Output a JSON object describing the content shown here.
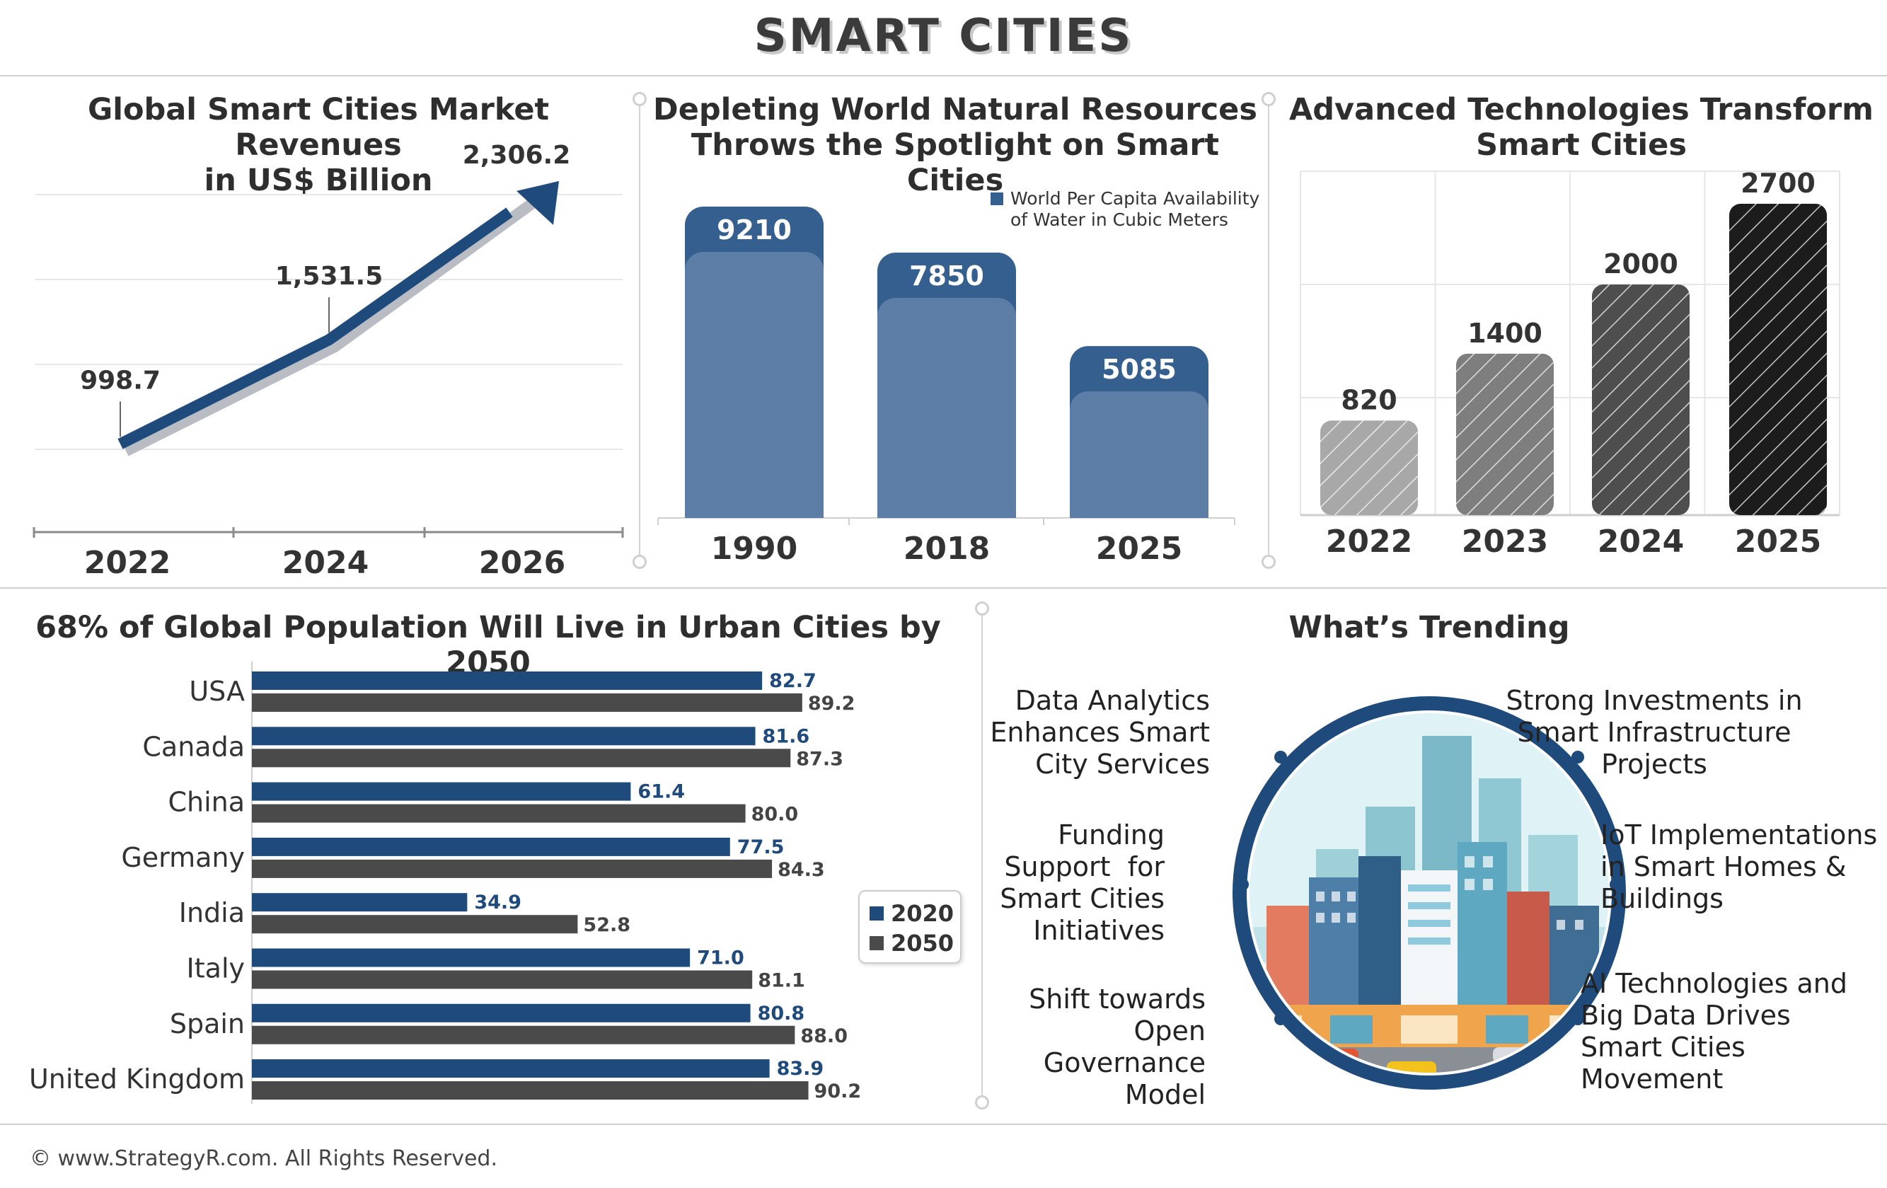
{
  "title": "SMART CITIES",
  "footer": "© www.StrategyR.com. All Rights Reserved.",
  "panels": {
    "market": {
      "title_line1": "Global Smart Cities Market Revenues",
      "title_line2": "in US$ Billion"
    },
    "water": {
      "title_line1": "Depleting World Natural Resources",
      "title_line2": "Throws the Spotlight on Smart Cities",
      "legend_line1": "World Per Capita Availability",
      "legend_line2": "of Water in Cubic Meters"
    },
    "tech": {
      "title_line1": "Advanced Technologies Transform",
      "title_line2": "Smart Cities"
    },
    "urban": {
      "title": "68% of Global Population Will Live in Urban Cities by 2050"
    },
    "trending": {
      "title": "What’s Trending",
      "left": [
        [
          "Data Analytics",
          "Enhances Smart",
          "City Services"
        ],
        [
          "Funding",
          "Support  for",
          "Smart Cities",
          "Initiatives"
        ],
        [
          "Shift towards",
          "Open",
          "Governance",
          "Model"
        ]
      ],
      "right": [
        [
          "Strong Investments in",
          "Smart Infrastructure",
          "Projects"
        ],
        [
          "IoT Implementations",
          "in Smart Homes &",
          "Buildings"
        ],
        [
          "AI Technologies and",
          "Big Data Drives",
          "Smart Cities",
          "Movement"
        ]
      ]
    }
  },
  "colors": {
    "navy": "#1e4a7c",
    "steel": "#5c7ea6",
    "steel_dark": "#345f8f",
    "dark_gray": "#4a4a4a",
    "grid": "#e6e6e6"
  },
  "chart_data": [
    {
      "id": "market",
      "type": "line",
      "title": "Global Smart Cities Market Revenues in US$ Billion",
      "categories": [
        "2022",
        "2024",
        "2026"
      ],
      "values": [
        998.7,
        1531.5,
        2306.2
      ],
      "value_labels": [
        "998.7",
        "1,531.5",
        "2,306.2"
      ],
      "grid": true
    },
    {
      "id": "water",
      "type": "bar",
      "title": "Depleting World Natural Resources Throws the Spotlight on Smart Cities",
      "categories": [
        "1990",
        "2018",
        "2025"
      ],
      "values": [
        9210,
        7850,
        5085
      ],
      "series": [
        {
          "name": "World Per Capita Availability of Water in Cubic Meters",
          "values": [
            9210,
            7850,
            5085
          ]
        }
      ],
      "legend": "top-right"
    },
    {
      "id": "tech",
      "type": "bar",
      "title": "Advanced Technologies Transform Smart Cities",
      "categories": [
        "2022",
        "2023",
        "2024",
        "2025"
      ],
      "values": [
        820,
        1400,
        2000,
        2700
      ],
      "bar_colors": [
        "#a8a8a8",
        "#7e7e7e",
        "#4e4e4e",
        "#1c1c1c"
      ],
      "grid": true
    },
    {
      "id": "urban",
      "type": "bar",
      "orientation": "horizontal",
      "title": "68% of Global Population Will Live in Urban Cities by 2050",
      "categories": [
        "USA",
        "Canada",
        "China",
        "Germany",
        "India",
        "Italy",
        "Spain",
        "United Kingdom"
      ],
      "series": [
        {
          "name": "2020",
          "values": [
            82.7,
            81.6,
            61.4,
            77.5,
            34.9,
            71.0,
            80.8,
            83.9
          ],
          "labels": [
            "82.7",
            "81.6",
            "61.4",
            "77.5",
            "34.9",
            "71.0",
            "80.8",
            "83.9"
          ]
        },
        {
          "name": "2050",
          "values": [
            89.2,
            87.3,
            80.0,
            84.3,
            52.8,
            81.1,
            88.0,
            90.2
          ],
          "labels": [
            "89.2",
            "87.3",
            "80.0",
            "84.3",
            "52.8",
            "81.1",
            "88.0",
            "90.2"
          ]
        }
      ],
      "legend": "right"
    }
  ]
}
